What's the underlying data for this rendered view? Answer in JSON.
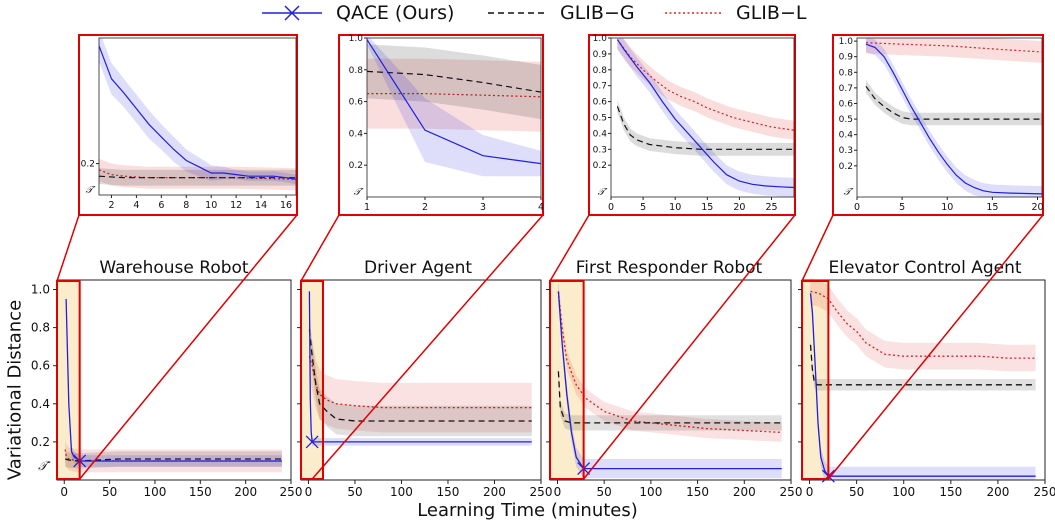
{
  "legend": {
    "items": [
      {
        "label": "QACE (Ours)",
        "color": "#2020e0",
        "style": "solid-x"
      },
      {
        "label": "GLIB−G",
        "color": "#111111",
        "style": "dashed"
      },
      {
        "label": "GLIB−L",
        "color": "#e02020",
        "style": "dotted"
      }
    ]
  },
  "labels": {
    "ylabel": "Variational Distance",
    "xlabel": "Learning Time (minutes)",
    "t_prime": "𝒯′"
  },
  "colors": {
    "qace": "#2020e0",
    "glibg": "#111111",
    "glibl": "#e02020",
    "zoom_box": "#e00000",
    "highlight": "#fbeccb"
  },
  "chart_data": [
    {
      "type": "line",
      "title": "Warehouse Robot",
      "xlim": [
        -8,
        250
      ],
      "ylim": [
        0,
        1.05
      ],
      "xticks": [
        0,
        50,
        100,
        150,
        200,
        250
      ],
      "yticks": [
        1.0,
        0.8,
        0.6,
        0.4,
        0.2
      ],
      "zoom_xmax": 17,
      "series": [
        {
          "name": "QACE (Ours)",
          "x": [
            2,
            5,
            8,
            11,
            14,
            17,
            240
          ],
          "y": [
            0.95,
            0.4,
            0.15,
            0.12,
            0.11,
            0.1,
            0.1
          ],
          "band": 0.03
        },
        {
          "name": "GLIB−G",
          "x": [
            1,
            5,
            15,
            60,
            240
          ],
          "y": [
            0.11,
            0.105,
            0.1,
            0.11,
            0.11
          ],
          "band": 0.04
        },
        {
          "name": "GLIB−L",
          "x": [
            1,
            2,
            5,
            15,
            240
          ],
          "y": [
            0.16,
            0.13,
            0.11,
            0.1,
            0.1
          ],
          "band": 0.06
        }
      ],
      "zoom": {
        "xlim": [
          1,
          16.8
        ],
        "ylim": [
          0.0,
          1.0
        ],
        "xticks": [
          2,
          4,
          6,
          8,
          10,
          12,
          14,
          16
        ],
        "yticks": [
          0.2
        ],
        "series": [
          {
            "name": "QACE (Ours)",
            "x": [
              1,
              2,
              3,
              4,
              5,
              6,
              7,
              8,
              9,
              10,
              11,
              12,
              13,
              14,
              15,
              16,
              16.8
            ],
            "y": [
              0.95,
              0.74,
              0.65,
              0.55,
              0.45,
              0.37,
              0.29,
              0.22,
              0.18,
              0.14,
              0.14,
              0.13,
              0.12,
              0.12,
              0.12,
              0.11,
              0.1
            ],
            "band": [
              0.1,
              0.1,
              0.09,
              0.09,
              0.09,
              0.08,
              0.08,
              0.07,
              0.06,
              0.05,
              0.04,
              0.03,
              0.03,
              0.03,
              0.03,
              0.03,
              0.03
            ]
          },
          {
            "name": "GLIB−G",
            "x": [
              1,
              3,
              6,
              10,
              14,
              16.8
            ],
            "y": [
              0.12,
              0.11,
              0.11,
              0.11,
              0.11,
              0.11
            ],
            "band": 0.05
          },
          {
            "name": "GLIB−L",
            "x": [
              1,
              2,
              3,
              5,
              8,
              12,
              16.8
            ],
            "y": [
              0.16,
              0.13,
              0.12,
              0.11,
              0.11,
              0.11,
              0.1
            ],
            "band": 0.07
          }
        ]
      }
    },
    {
      "type": "line",
      "title": "Driver Agent",
      "xlim": [
        -8,
        250
      ],
      "ylim": [
        0,
        1.05
      ],
      "xticks": [
        0,
        50,
        100,
        150,
        200,
        250
      ],
      "yticks": [
        1.0,
        0.8,
        0.6,
        0.4,
        0.2
      ],
      "zoom_xmax": 4,
      "series": [
        {
          "name": "QACE (Ours)",
          "x": [
            1,
            2,
            3,
            4,
            240
          ],
          "y": [
            0.99,
            0.42,
            0.25,
            0.2,
            0.2
          ],
          "band": 0.02
        },
        {
          "name": "GLIB−G",
          "x": [
            1,
            4,
            8,
            12,
            20,
            30,
            50,
            80,
            120,
            160,
            200,
            240
          ],
          "y": [
            0.79,
            0.65,
            0.5,
            0.4,
            0.36,
            0.32,
            0.31,
            0.31,
            0.31,
            0.31,
            0.31,
            0.31
          ],
          "band": 0.08
        },
        {
          "name": "GLIB−L",
          "x": [
            1,
            4,
            8,
            12,
            20,
            30,
            50,
            80,
            120,
            160,
            200,
            240
          ],
          "y": [
            0.65,
            0.6,
            0.5,
            0.45,
            0.42,
            0.4,
            0.39,
            0.38,
            0.38,
            0.38,
            0.38,
            0.38
          ],
          "band": 0.13
        }
      ],
      "zoom": {
        "xlim": [
          1,
          4
        ],
        "ylim": [
          0.0,
          1.0
        ],
        "xticks": [
          1,
          2,
          3,
          4
        ],
        "yticks": [
          1.0,
          0.8,
          0.6,
          0.4,
          0.2
        ],
        "series": [
          {
            "name": "QACE (Ours)",
            "x": [
              1,
              2,
              3,
              4
            ],
            "y": [
              0.99,
              0.42,
              0.26,
              0.21
            ],
            "band": [
              0.03,
              0.2,
              0.13,
              0.08
            ]
          },
          {
            "name": "GLIB−G",
            "x": [
              1,
              2,
              3,
              4
            ],
            "y": [
              0.79,
              0.77,
              0.72,
              0.66
            ],
            "band": 0.17
          },
          {
            "name": "GLIB−L",
            "x": [
              1,
              2,
              3,
              4
            ],
            "y": [
              0.65,
              0.65,
              0.64,
              0.63
            ],
            "band": 0.22
          }
        ]
      }
    },
    {
      "type": "line",
      "title": "First Responder Robot",
      "xlim": [
        -8,
        250
      ],
      "ylim": [
        0,
        1.05
      ],
      "xticks": [
        0,
        50,
        100,
        150,
        200,
        250
      ],
      "yticks": [
        1.0,
        0.8,
        0.6,
        0.4,
        0.2
      ],
      "zoom_xmax": 28,
      "series": [
        {
          "name": "QACE (Ours)",
          "x": [
            1,
            5,
            10,
            15,
            20,
            28,
            240
          ],
          "y": [
            0.99,
            0.72,
            0.45,
            0.25,
            0.12,
            0.06,
            0.06
          ],
          "band": 0.05
        },
        {
          "name": "GLIB−G",
          "x": [
            1,
            3,
            8,
            15,
            30,
            60,
            100,
            150,
            200,
            240
          ],
          "y": [
            0.57,
            0.38,
            0.31,
            0.3,
            0.3,
            0.3,
            0.3,
            0.3,
            0.3,
            0.3
          ],
          "band": 0.04
        },
        {
          "name": "GLIB−L",
          "x": [
            1,
            5,
            10,
            20,
            30,
            50,
            80,
            120,
            160,
            200,
            240
          ],
          "y": [
            0.99,
            0.8,
            0.63,
            0.5,
            0.43,
            0.36,
            0.31,
            0.29,
            0.27,
            0.26,
            0.25
          ],
          "band": 0.05
        }
      ],
      "zoom": {
        "xlim": [
          0,
          28.5
        ],
        "ylim": [
          0.0,
          1.0
        ],
        "xticks": [
          0,
          5,
          10,
          15,
          20,
          25
        ],
        "yticks": [
          1.0,
          0.9,
          0.8,
          0.7,
          0.6,
          0.5,
          0.4,
          0.3,
          0.2
        ],
        "series": [
          {
            "name": "QACE (Ours)",
            "x": [
              1,
              2,
              4,
              6,
              8,
              10,
              12,
              14,
              16,
              18,
              20,
              22,
              24,
              26,
              28.5
            ],
            "y": [
              0.99,
              0.93,
              0.82,
              0.72,
              0.6,
              0.49,
              0.4,
              0.31,
              0.22,
              0.14,
              0.1,
              0.08,
              0.07,
              0.065,
              0.06
            ],
            "band": 0.06
          },
          {
            "name": "GLIB−G",
            "x": [
              1,
              2,
              3,
              4,
              6,
              8,
              10,
              14,
              18,
              22,
              28.5
            ],
            "y": [
              0.57,
              0.46,
              0.39,
              0.36,
              0.33,
              0.32,
              0.31,
              0.3,
              0.3,
              0.3,
              0.3
            ],
            "band": 0.04
          },
          {
            "name": "GLIB−L",
            "x": [
              1,
              3,
              5,
              7,
              9,
              11,
              13,
              15,
              17,
              19,
              21,
              23,
              25,
              28.5
            ],
            "y": [
              0.99,
              0.88,
              0.8,
              0.73,
              0.67,
              0.63,
              0.6,
              0.56,
              0.53,
              0.5,
              0.48,
              0.46,
              0.44,
              0.42
            ],
            "band": 0.06
          }
        ]
      }
    },
    {
      "type": "line",
      "title": "Elevator Control Agent",
      "xlim": [
        -8,
        250
      ],
      "ylim": [
        0,
        1.05
      ],
      "xticks": [
        0,
        50,
        100,
        150,
        200,
        250
      ],
      "yticks": [
        1.0,
        0.8,
        0.6,
        0.4,
        0.2
      ],
      "zoom_xmax": 20,
      "series": [
        {
          "name": "QACE (Ours)",
          "x": [
            1,
            3,
            6,
            9,
            12,
            16,
            20,
            240
          ],
          "y": [
            0.98,
            0.88,
            0.6,
            0.3,
            0.12,
            0.05,
            0.02,
            0.02
          ],
          "band": 0.05
        },
        {
          "name": "GLIB−G",
          "x": [
            1,
            3,
            5,
            8,
            240
          ],
          "y": [
            0.71,
            0.58,
            0.52,
            0.5,
            0.5
          ],
          "band": 0.03
        },
        {
          "name": "GLIB−L",
          "x": [
            1,
            10,
            20,
            30,
            40,
            50,
            60,
            80,
            100,
            120,
            150,
            180,
            210,
            240
          ],
          "y": [
            0.99,
            0.98,
            0.95,
            0.88,
            0.82,
            0.78,
            0.72,
            0.66,
            0.65,
            0.65,
            0.65,
            0.65,
            0.64,
            0.64
          ],
          "band": 0.07
        }
      ],
      "zoom": {
        "xlim": [
          0,
          20.5
        ],
        "ylim": [
          0.0,
          1.02
        ],
        "xticks": [
          0,
          5,
          10,
          15,
          20
        ],
        "yticks": [
          1.0,
          0.9,
          0.8,
          0.7,
          0.6,
          0.5,
          0.4,
          0.3,
          0.2
        ],
        "series": [
          {
            "name": "QACE (Ours)",
            "x": [
              1,
              2,
              3,
              4,
              5,
              6,
              7,
              8,
              9,
              10,
              11,
              12,
              13,
              14,
              15,
              17,
              20.5
            ],
            "y": [
              0.98,
              0.96,
              0.9,
              0.8,
              0.69,
              0.58,
              0.48,
              0.38,
              0.29,
              0.21,
              0.14,
              0.09,
              0.06,
              0.04,
              0.03,
              0.025,
              0.02
            ],
            "band": 0.05
          },
          {
            "name": "GLIB−G",
            "x": [
              1,
              2,
              3,
              4,
              5,
              6,
              8,
              10,
              14,
              20.5
            ],
            "y": [
              0.71,
              0.63,
              0.58,
              0.54,
              0.51,
              0.5,
              0.5,
              0.5,
              0.5,
              0.5
            ],
            "band": 0.04
          },
          {
            "name": "GLIB−L",
            "x": [
              1,
              5,
              10,
              15,
              20.5
            ],
            "y": [
              0.99,
              0.98,
              0.97,
              0.95,
              0.93
            ],
            "band": 0.07
          }
        ]
      }
    }
  ]
}
